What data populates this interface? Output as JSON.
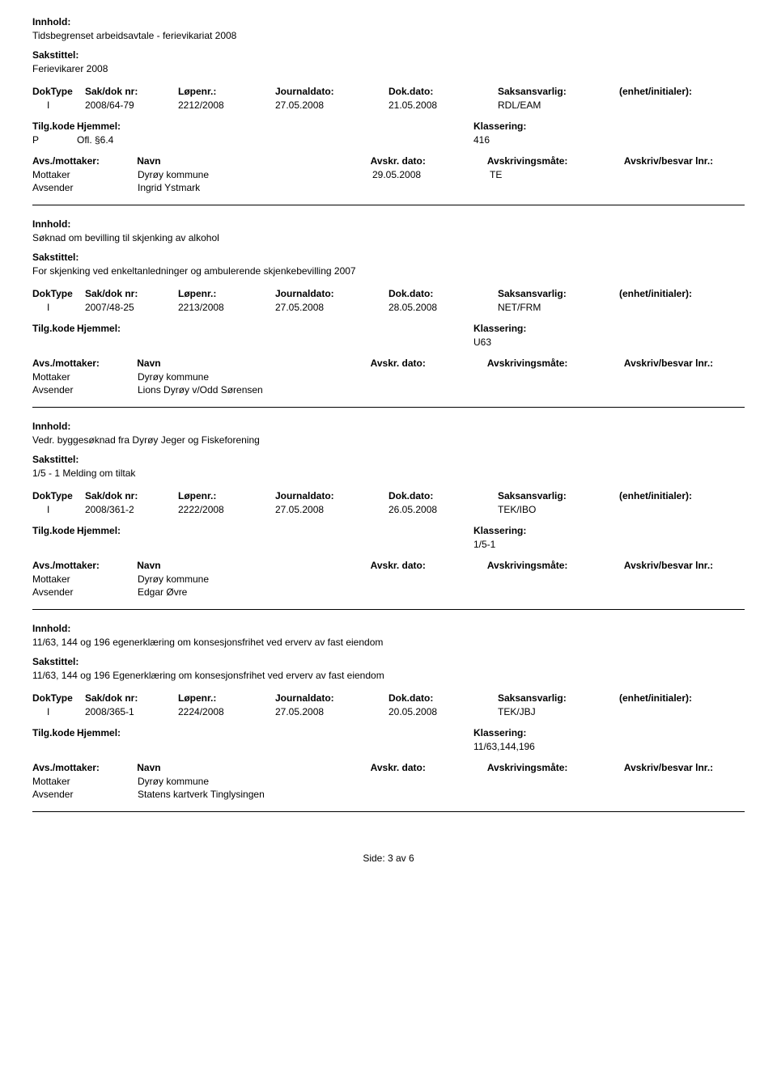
{
  "labels": {
    "innhold": "Innhold:",
    "sakstittel": "Sakstittel:",
    "doktype": "DokType",
    "sakdok": "Sak/dok nr:",
    "lopenr": "Løpenr.:",
    "journaldato": "Journaldato:",
    "dokdato": "Dok.dato:",
    "saksansvarlig": "Saksansvarlig:",
    "enhet": "(enhet/initialer):",
    "tilgkode": "Tilg.kode",
    "hjemmel": "Hjemmel:",
    "klassering": "Klassering:",
    "avsmottaker": "Avs./mottaker:",
    "navn": "Navn",
    "avskrdato": "Avskr. dato:",
    "avskrivingsmate": "Avskrivingsmåte:",
    "avskrivbesvar": "Avskriv/besvar lnr.:",
    "mottaker": "Mottaker",
    "avsender": "Avsender"
  },
  "records": [
    {
      "innhold": "Tidsbegrenset arbeidsavtale - ferievikariat 2008",
      "sakstittel": "Ferievikarer 2008",
      "doktype": "I",
      "sakdok": "2008/64-79",
      "lopenr": "2212/2008",
      "journaldato": "27.05.2008",
      "dokdato": "21.05.2008",
      "saksansvarlig": "RDL/EAM",
      "tilgcode": "P",
      "hjemmel": "Ofl. §6.4",
      "klassering": "416",
      "mottaker": "Dyrøy kommune",
      "avskrdato": "29.05.2008",
      "avskrmate": "TE",
      "avsender": "Ingrid Ystmark"
    },
    {
      "innhold": "Søknad om bevilling til skjenking av alkohol",
      "sakstittel": "For skjenking ved  enkeltanledninger  og ambulerende skjenkebevilling 2007",
      "doktype": "I",
      "sakdok": "2007/48-25",
      "lopenr": "2213/2008",
      "journaldato": "27.05.2008",
      "dokdato": "28.05.2008",
      "saksansvarlig": "NET/FRM",
      "tilgcode": "",
      "hjemmel": "",
      "klassering": "U63",
      "mottaker": "Dyrøy kommune",
      "avskrdato": "",
      "avskrmate": "",
      "avsender": "Lions Dyrøy v/Odd Sørensen"
    },
    {
      "innhold": "Vedr. byggesøknad fra Dyrøy Jeger og Fiskeforening",
      "sakstittel": "1/5 - 1 Melding om tiltak",
      "doktype": "I",
      "sakdok": "2008/361-2",
      "lopenr": "2222/2008",
      "journaldato": "27.05.2008",
      "dokdato": "26.05.2008",
      "saksansvarlig": "TEK/IBO",
      "tilgcode": "",
      "hjemmel": "",
      "klassering": "1/5-1",
      "mottaker": "Dyrøy kommune",
      "avskrdato": "",
      "avskrmate": "",
      "avsender": "Edgar Øvre"
    },
    {
      "innhold": "11/63, 144 og 196 egenerklæring om konsesjonsfrihet ved erverv av fast eiendom",
      "sakstittel": "11/63, 144 og 196 Egenerklæring om konsesjonsfrihet ved erverv av fast eiendom",
      "doktype": "I",
      "sakdok": "2008/365-1",
      "lopenr": "2224/2008",
      "journaldato": "27.05.2008",
      "dokdato": "20.05.2008",
      "saksansvarlig": "TEK/JBJ",
      "tilgcode": "",
      "hjemmel": "",
      "klassering": "11/63,144,196",
      "mottaker": "Dyrøy kommune",
      "avskrdato": "",
      "avskrmate": "",
      "avsender": "Statens kartverk Tinglysingen"
    }
  ],
  "footer": "Side: 3 av 6"
}
